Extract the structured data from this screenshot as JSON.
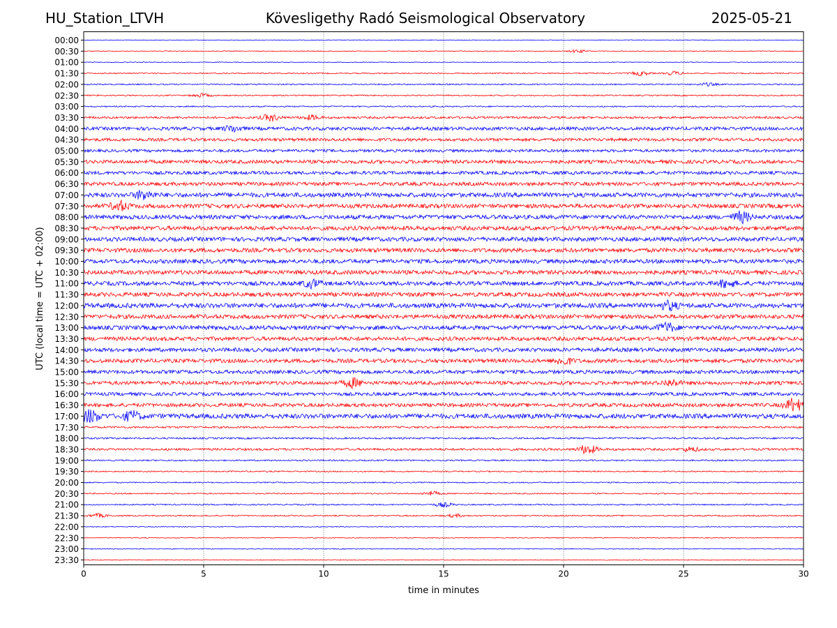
{
  "header": {
    "station": "HU_Station_LTVH",
    "observatory": "Kövesligethy Radó Seismological Observatory",
    "date": "2025-05-21"
  },
  "chart_data": {
    "type": "line",
    "title": "Kövesligethy Radó Seismological Observatory",
    "xlabel": "time in minutes",
    "ylabel": "UTC (local time = UTC + 02:00)",
    "xlim": [
      0,
      30
    ],
    "xticks": [
      0,
      5,
      10,
      15,
      20,
      25,
      30
    ],
    "grid": "vertical dotted lines at x ticks",
    "row_labels": [
      "00:00",
      "00:30",
      "01:00",
      "01:30",
      "02:00",
      "02:30",
      "03:00",
      "03:30",
      "04:00",
      "04:30",
      "05:00",
      "05:30",
      "06:00",
      "06:30",
      "07:00",
      "07:30",
      "08:00",
      "08:30",
      "09:00",
      "09:30",
      "10:00",
      "10:30",
      "11:00",
      "11:30",
      "12:00",
      "12:30",
      "13:00",
      "13:30",
      "14:00",
      "14:30",
      "15:00",
      "15:30",
      "16:00",
      "16:30",
      "17:00",
      "17:30",
      "18:00",
      "18:30",
      "19:00",
      "19:30",
      "20:00",
      "20:30",
      "21:00",
      "21:30",
      "22:00",
      "22:30",
      "23:00",
      "23:30"
    ],
    "colors": [
      "#0000ff",
      "#ff0000"
    ],
    "noise_levels": [
      0.5,
      0.6,
      0.5,
      0.8,
      0.9,
      0.9,
      0.9,
      1.6,
      2.4,
      2.2,
      2.0,
      2.6,
      2.4,
      2.6,
      3.2,
      3.0,
      3.0,
      3.0,
      3.0,
      3.0,
      3.0,
      3.0,
      3.0,
      3.0,
      3.4,
      3.0,
      3.0,
      2.8,
      2.8,
      2.8,
      2.6,
      2.6,
      2.4,
      2.6,
      3.4,
      1.4,
      1.2,
      1.6,
      1.0,
      0.9,
      0.8,
      0.9,
      0.9,
      0.9,
      0.6,
      0.6,
      0.6,
      0.6
    ],
    "events": [
      {
        "row": 1,
        "minute": 20.6,
        "amp": 2.0
      },
      {
        "row": 3,
        "minute": 23.2,
        "amp": 3.0
      },
      {
        "row": 3,
        "minute": 24.6,
        "amp": 2.5
      },
      {
        "row": 4,
        "minute": 26.0,
        "amp": 2.0
      },
      {
        "row": 5,
        "minute": 4.9,
        "amp": 2.5
      },
      {
        "row": 7,
        "minute": 7.8,
        "amp": 4.5
      },
      {
        "row": 7,
        "minute": 9.5,
        "amp": 3.0
      },
      {
        "row": 8,
        "minute": 6.2,
        "amp": 4.0
      },
      {
        "row": 14,
        "minute": 2.5,
        "amp": 6.0
      },
      {
        "row": 15,
        "minute": 1.5,
        "amp": 6.0
      },
      {
        "row": 16,
        "minute": 27.4,
        "amp": 7.0
      },
      {
        "row": 22,
        "minute": 9.5,
        "amp": 5.0
      },
      {
        "row": 22,
        "minute": 26.8,
        "amp": 5.0
      },
      {
        "row": 24,
        "minute": 24.4,
        "amp": 5.5
      },
      {
        "row": 26,
        "minute": 24.3,
        "amp": 6.0
      },
      {
        "row": 29,
        "minute": 20.0,
        "amp": 5.0
      },
      {
        "row": 31,
        "minute": 11.2,
        "amp": 6.0
      },
      {
        "row": 31,
        "minute": 24.5,
        "amp": 4.0
      },
      {
        "row": 33,
        "minute": 29.6,
        "amp": 9.0
      },
      {
        "row": 34,
        "minute": 0.3,
        "amp": 8.0
      },
      {
        "row": 34,
        "minute": 2.0,
        "amp": 6.0
      },
      {
        "row": 37,
        "minute": 21.0,
        "amp": 6.5
      },
      {
        "row": 37,
        "minute": 25.3,
        "amp": 3.0
      },
      {
        "row": 41,
        "minute": 14.5,
        "amp": 3.0
      },
      {
        "row": 42,
        "minute": 15.0,
        "amp": 3.0
      },
      {
        "row": 43,
        "minute": 0.6,
        "amp": 2.5
      },
      {
        "row": 43,
        "minute": 15.5,
        "amp": 2.0
      }
    ]
  }
}
